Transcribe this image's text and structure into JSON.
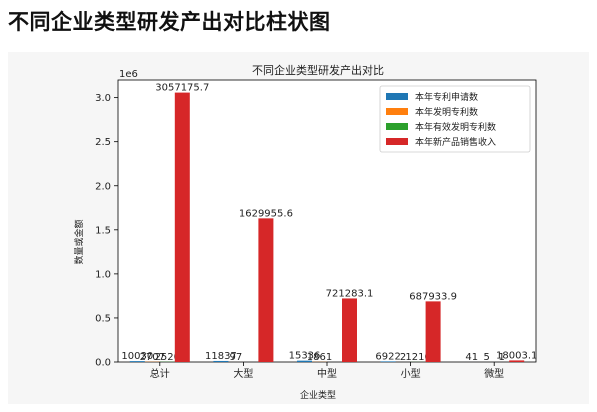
{
  "page": {
    "heading": "不同企业类型研发产出对比柱状图"
  },
  "colors": {
    "background": "#ffffff",
    "panel": "#f6f6f6"
  },
  "chart_data": {
    "type": "bar",
    "title": "不同企业类型研发产出对比",
    "xlabel": "企业类型",
    "ylabel": "数量或金额",
    "y_offset_label": "1e6",
    "ylim": [
      0,
      3200000
    ],
    "y_ticks": [
      0,
      500000,
      1000000,
      1500000,
      2000000,
      2500000,
      3000000
    ],
    "y_tick_labels": [
      "0.0",
      "0.5",
      "1.0",
      "1.5",
      "2.0",
      "2.5",
      "3.0"
    ],
    "categories": [
      "总计",
      "大型",
      "中型",
      "小型",
      "微型"
    ],
    "legend_position": "top-right",
    "grid": false,
    "series": [
      {
        "name": "本年专利申请数",
        "color": "#1f77b4",
        "values": [
          10030,
          11837,
          15336,
          6922,
          41
        ],
        "labels": [
          "10030",
          "11837",
          "15336",
          "6922",
          "41"
        ]
      },
      {
        "name": "本年发明专利数",
        "color": "#ff7f0e",
        "values": [
          2707,
          97,
          1861,
          2,
          5
        ],
        "labels": [
          "2707",
          "97",
          "1861",
          "2",
          "5"
        ]
      },
      {
        "name": "本年有效发明专利数",
        "color": "#2ca02c",
        "values": [
          2520,
          0,
          0,
          1210,
          1
        ],
        "labels": [
          "2520",
          "",
          "",
          "1210",
          "1"
        ]
      },
      {
        "name": "本年新产品销售收入",
        "color": "#d62728",
        "values": [
          3057175.7,
          1629955.6,
          721283.1,
          687933.9,
          18003.1
        ],
        "labels": [
          "3057175.7",
          "1629955.6",
          "721283.1",
          "687933.9",
          "18003.1"
        ]
      }
    ]
  }
}
